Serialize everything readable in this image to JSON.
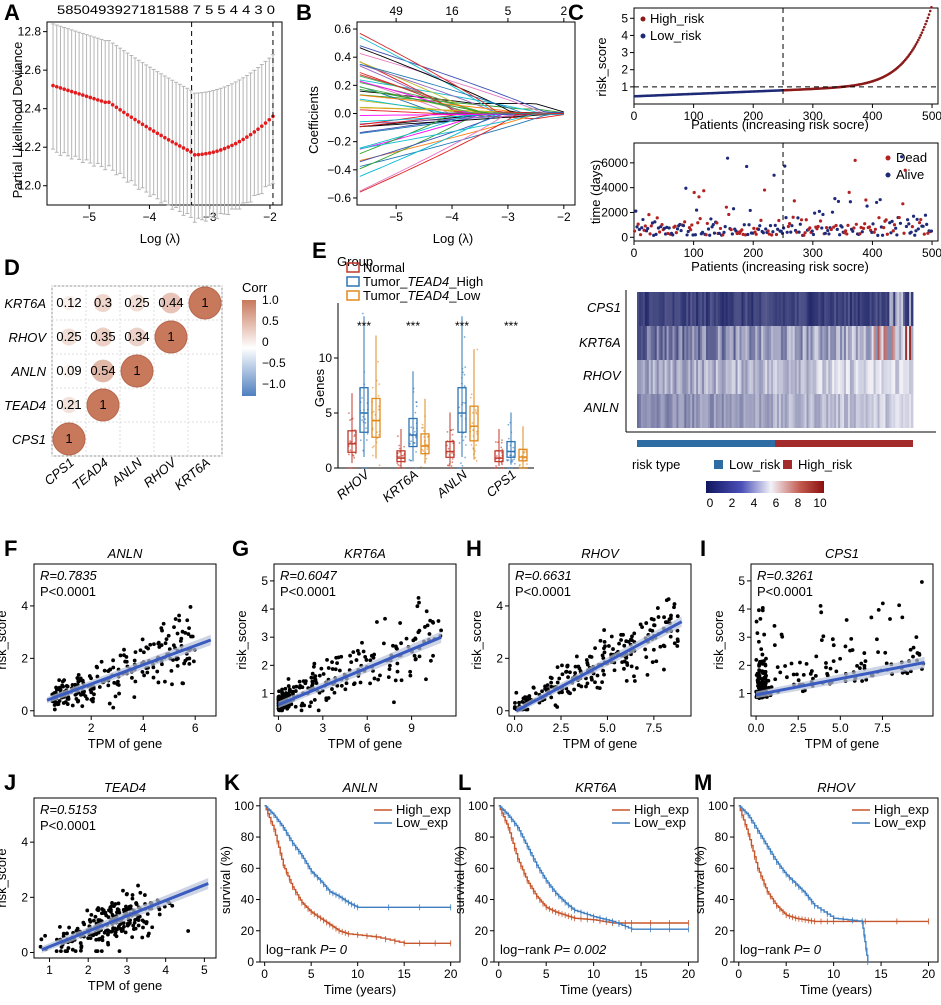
{
  "figure": {
    "panel_labels": [
      "A",
      "B",
      "C",
      "D",
      "E",
      "F",
      "G",
      "H",
      "I",
      "J",
      "K",
      "L",
      "M"
    ]
  },
  "chart_data": [
    {
      "id": "A",
      "type": "line",
      "title": "",
      "xlabel": "Log (λ)",
      "ylabel": "Partial Likelihood Deviance",
      "xlim": [
        -5.7,
        -1.8
      ],
      "ylim": [
        11.9,
        12.85
      ],
      "xticks": [
        -5,
        -4,
        -3,
        -2
      ],
      "yticks": [
        12.0,
        12.2,
        12.4,
        12.6,
        12.8
      ],
      "xticklabels": [
        "−5",
        "−4",
        "−3",
        "−2"
      ],
      "yticklabels": [
        "12.0",
        "12.2",
        "12.4",
        "12.6",
        "12.8"
      ],
      "top_axis_labels": "5850493927181588 7 5 5 4 4 3 0",
      "vlines": [
        -3.3,
        -1.95
      ]
    },
    {
      "id": "B",
      "type": "line",
      "xlabel": "Log (λ)",
      "ylabel": "Coefficients",
      "xlim": [
        -5.7,
        -1.8
      ],
      "ylim": [
        -0.65,
        0.65
      ],
      "xticks": [
        -5,
        -4,
        -3,
        -2
      ],
      "yticks": [
        -0.6,
        -0.4,
        -0.2,
        0.0,
        0.2,
        0.4,
        0.6
      ],
      "xticklabels": [
        "−5",
        "−4",
        "−3",
        "−2"
      ],
      "yticklabels": [
        "−0.6",
        "−0.4",
        "−0.2",
        "0.0",
        "0.2",
        "0.4",
        "0.6"
      ],
      "top_ticks": [
        -5,
        -4,
        -3,
        -2
      ],
      "top_axis_labels": [
        "49",
        "16",
        "5",
        "2"
      ]
    },
    {
      "id": "C1",
      "type": "scatter",
      "xlabel": "Patients (increasing risk socre)",
      "ylabel": "risk_score",
      "xlim": [
        0,
        510
      ],
      "ylim": [
        0,
        5.6
      ],
      "xticks": [
        0,
        100,
        200,
        300,
        400,
        500
      ],
      "yticks": [
        1,
        2,
        3,
        4,
        5
      ],
      "xticklabels": [
        "0",
        "100",
        "200",
        "300",
        "400",
        "500"
      ],
      "yticklabels": [
        "1",
        "2",
        "3",
        "4",
        "5"
      ],
      "cutoff_x": 250,
      "cutoff_y": 1,
      "legend": [
        "High_risk",
        "Low_risk"
      ]
    },
    {
      "id": "C2",
      "type": "scatter",
      "xlabel": "Patients (increasing risk socre)",
      "ylabel": "time (days)",
      "xlim": [
        0,
        510
      ],
      "ylim": [
        -300,
        7600
      ],
      "xticks": [
        0,
        100,
        200,
        300,
        400,
        500
      ],
      "yticks": [
        0,
        2000,
        4000,
        6000
      ],
      "xticklabels": [
        "0",
        "100",
        "200",
        "300",
        "400",
        "500"
      ],
      "yticklabels": [
        "0",
        "2000",
        "4000",
        "6000"
      ],
      "cutoff_x": 250,
      "legend": [
        "Dead",
        "Alive"
      ]
    },
    {
      "id": "C3",
      "type": "heatmap",
      "rows": [
        "CPS1",
        "KRT6A",
        "RHOV",
        "ANLN"
      ],
      "legend_title": "risk type",
      "legend": [
        "Low_risk",
        "High_risk"
      ],
      "colorbar_ticks": [
        "0",
        "2",
        "4",
        "6",
        "8",
        "10"
      ]
    },
    {
      "id": "D",
      "type": "heatmap",
      "labels": [
        "CPS1",
        "TEAD4",
        "ANLN",
        "RHOV",
        "KRT6A"
      ],
      "values": [
        [
          1,
          null,
          null,
          null,
          null
        ],
        [
          0.21,
          1,
          null,
          null,
          null
        ],
        [
          0.09,
          0.54,
          1,
          null,
          null
        ],
        [
          0.25,
          0.35,
          0.34,
          1,
          null
        ],
        [
          0.12,
          0.3,
          0.25,
          0.44,
          1
        ]
      ],
      "colorbar_title": "Corr",
      "colorbar_ticks": [
        "1.0",
        "0.5",
        "0",
        "−0.5",
        "−1.0"
      ]
    },
    {
      "id": "E",
      "type": "bar",
      "title": "Group",
      "ylabel": "Genes",
      "categories": [
        "RHOV",
        "KRT6A",
        "ANLN",
        "CPS1"
      ],
      "series": [
        {
          "name": "Normal",
          "median": [
            2.2,
            0.9,
            1.5,
            0.9
          ]
        },
        {
          "name": "Tumor_TEAD4_High",
          "median": [
            5.0,
            3.0,
            5.0,
            1.5
          ]
        },
        {
          "name": "Tumor_TEAD4_Low",
          "median": [
            4.3,
            2.0,
            3.8,
            1.0
          ]
        }
      ],
      "legend_parts": [
        [
          "Normal",
          "",
          ""
        ],
        [
          "Tumor_",
          "TEAD4",
          "_High"
        ],
        [
          "Tumor_",
          "TEAD4",
          "_Low"
        ]
      ],
      "ylim": [
        0,
        15
      ],
      "yticks": [
        0,
        5,
        10
      ],
      "yticklabels": [
        "0",
        "5",
        "10"
      ],
      "significance": [
        "***",
        "***",
        "***",
        "***"
      ]
    },
    {
      "id": "F",
      "type": "scatter",
      "title": "ANLN",
      "xlabel": "TPM of gene",
      "ylabel": "risk_score",
      "R": "R=0.7835",
      "P": "P<0.0001",
      "xlim": [
        -0.2,
        6.8
      ],
      "ylim": [
        -0.2,
        5.6
      ],
      "xticks": [
        2,
        4,
        6
      ],
      "yticks": [
        0,
        2,
        4
      ],
      "xticklabels": [
        "2",
        "4",
        "6"
      ],
      "yticklabels": [
        "0",
        "2",
        "4"
      ],
      "fit": [
        [
          0.3,
          0.4
        ],
        [
          6.6,
          2.7
        ]
      ]
    },
    {
      "id": "G",
      "type": "scatter",
      "title": "KRT6A",
      "xlabel": "TPM of gene",
      "ylabel": "risk_score",
      "R": "R=0.6047",
      "P": "P<0.0001",
      "xlim": [
        -0.3,
        12
      ],
      "ylim": [
        0.2,
        5.6
      ],
      "xticks": [
        0,
        3,
        6,
        9
      ],
      "yticks": [
        1,
        2,
        3,
        4,
        5
      ],
      "xticklabels": [
        "0",
        "3",
        "6",
        "9"
      ],
      "yticklabels": [
        "1",
        "2",
        "3",
        "4",
        "5"
      ],
      "fit": [
        [
          0,
          0.6
        ],
        [
          11,
          3.0
        ]
      ]
    },
    {
      "id": "H",
      "type": "scatter",
      "title": "RHOV",
      "xlabel": "TPM of gene",
      "ylabel": "risk_score",
      "R": "R=0.6631",
      "P": "P<0.0001",
      "xlim": [
        -0.3,
        9.5
      ],
      "ylim": [
        -0.2,
        5.6
      ],
      "xticks": [
        0,
        2.5,
        5,
        7.5
      ],
      "yticks": [
        0,
        2,
        4
      ],
      "xticklabels": [
        "0.0",
        "2.5",
        "5.0",
        "7.5"
      ],
      "yticklabels": [
        "0",
        "2",
        "4"
      ],
      "fit": [
        [
          0.1,
          0.0
        ],
        [
          9.0,
          3.4
        ]
      ]
    },
    {
      "id": "I",
      "type": "scatter",
      "title": "CPS1",
      "xlabel": "TPM of gene",
      "ylabel": "risk_score",
      "R": "R=0.3261",
      "P": "P<0.0001",
      "xlim": [
        -0.3,
        10.5
      ],
      "ylim": [
        0.2,
        5.6
      ],
      "xticks": [
        0,
        2.5,
        5,
        7.5
      ],
      "yticks": [
        1,
        2,
        3,
        4,
        5
      ],
      "xticklabels": [
        "0.0",
        "2.5",
        "5.0",
        "7.5"
      ],
      "yticklabels": [
        "1",
        "2",
        "3",
        "4",
        "5"
      ],
      "fit": [
        [
          0,
          0.95
        ],
        [
          10,
          2.1
        ]
      ]
    },
    {
      "id": "J",
      "type": "scatter",
      "title": "TEAD4",
      "xlabel": "TPM of gene",
      "ylabel": "risk_score",
      "R": "R=0.5153",
      "P": "P<0.0001",
      "xlim": [
        0.6,
        5.3
      ],
      "ylim": [
        -0.2,
        5.6
      ],
      "xticks": [
        1,
        2,
        3,
        4,
        5
      ],
      "yticks": [
        0,
        2,
        4
      ],
      "xticklabels": [
        "1",
        "2",
        "3",
        "4",
        "5"
      ],
      "yticklabels": [
        "0",
        "2",
        "4"
      ],
      "fit": [
        [
          0.8,
          0.1
        ],
        [
          5.1,
          2.5
        ]
      ]
    },
    {
      "id": "K",
      "type": "line",
      "title": "ANLN",
      "xlabel": "Time (years)",
      "ylabel": "survival (%)",
      "logrank_prefix": "log−rank",
      "logrank_value": "P= 0",
      "xlim": [
        -0.5,
        21
      ],
      "ylim": [
        0,
        105
      ],
      "xticks": [
        0,
        5,
        10,
        15,
        20
      ],
      "yticks": [
        0,
        20,
        40,
        60,
        80,
        100
      ],
      "xticklabels": [
        "0",
        "5",
        "10",
        "15",
        "20"
      ],
      "yticklabels": [
        "0",
        "20",
        "40",
        "60",
        "80",
        "100"
      ],
      "series": [
        {
          "name": "High_exp",
          "points": [
            [
              0,
              100
            ],
            [
              1,
              85
            ],
            [
              2,
              62
            ],
            [
              3,
              48
            ],
            [
              4,
              38
            ],
            [
              5,
              32
            ],
            [
              6,
              28
            ],
            [
              7,
              24
            ],
            [
              8,
              20
            ],
            [
              9,
              18
            ],
            [
              12,
              16
            ],
            [
              15,
              12
            ],
            [
              20,
              12
            ]
          ]
        },
        {
          "name": "Low_exp",
          "points": [
            [
              0,
              100
            ],
            [
              1,
              94
            ],
            [
              2,
              86
            ],
            [
              3,
              76
            ],
            [
              4,
              68
            ],
            [
              5,
              58
            ],
            [
              6,
              52
            ],
            [
              7,
              45
            ],
            [
              8,
              42
            ],
            [
              9,
              38
            ],
            [
              10,
              35
            ],
            [
              20,
              35
            ]
          ]
        }
      ]
    },
    {
      "id": "L",
      "type": "line",
      "title": "KRT6A",
      "xlabel": "Time (years)",
      "ylabel": "survival (%)",
      "logrank_prefix": "log−rank",
      "logrank_value": "P= 0.002",
      "xlim": [
        -0.5,
        21
      ],
      "ylim": [
        0,
        105
      ],
      "xticks": [
        0,
        5,
        10,
        15,
        20
      ],
      "yticks": [
        0,
        20,
        40,
        60,
        80,
        100
      ],
      "xticklabels": [
        "0",
        "5",
        "10",
        "15",
        "20"
      ],
      "yticklabels": [
        "0",
        "20",
        "40",
        "60",
        "80",
        "100"
      ],
      "series": [
        {
          "name": "High_exp",
          "points": [
            [
              0,
              100
            ],
            [
              1,
              86
            ],
            [
              2,
              66
            ],
            [
              3,
              52
            ],
            [
              4,
              42
            ],
            [
              5,
              35
            ],
            [
              6,
              32
            ],
            [
              7,
              30
            ],
            [
              8,
              28
            ],
            [
              10,
              27
            ],
            [
              12,
              25
            ],
            [
              14,
              25
            ],
            [
              20,
              25
            ]
          ]
        },
        {
          "name": "Low_exp",
          "points": [
            [
              0,
              100
            ],
            [
              1,
              94
            ],
            [
              2,
              86
            ],
            [
              3,
              74
            ],
            [
              4,
              62
            ],
            [
              5,
              52
            ],
            [
              6,
              44
            ],
            [
              7,
              38
            ],
            [
              8,
              33
            ],
            [
              10,
              29
            ],
            [
              12,
              26
            ],
            [
              14,
              21
            ],
            [
              20,
              21
            ]
          ]
        }
      ]
    },
    {
      "id": "M",
      "type": "line",
      "title": "RHOV",
      "xlabel": "Time (years)",
      "ylabel": "survival (%)",
      "logrank_prefix": "log−rank",
      "logrank_value": "P= 0",
      "xlim": [
        -0.5,
        21
      ],
      "ylim": [
        0,
        105
      ],
      "xticks": [
        0,
        5,
        10,
        15,
        20
      ],
      "yticks": [
        0,
        20,
        40,
        60,
        80,
        100
      ],
      "xticklabels": [
        "0",
        "5",
        "10",
        "15",
        "20"
      ],
      "yticklabels": [
        "0",
        "20",
        "40",
        "60",
        "80",
        "100"
      ],
      "series": [
        {
          "name": "High_exp",
          "points": [
            [
              0,
              100
            ],
            [
              1,
              82
            ],
            [
              2,
              60
            ],
            [
              3,
              45
            ],
            [
              4,
              36
            ],
            [
              5,
              30
            ],
            [
              6,
              28
            ],
            [
              7,
              27
            ],
            [
              8,
              26
            ],
            [
              10,
              26
            ],
            [
              20,
              26
            ]
          ]
        },
        {
          "name": "Low_exp",
          "points": [
            [
              0,
              100
            ],
            [
              1,
              94
            ],
            [
              2,
              84
            ],
            [
              3,
              74
            ],
            [
              4,
              64
            ],
            [
              5,
              56
            ],
            [
              6,
              50
            ],
            [
              7,
              44
            ],
            [
              8,
              36
            ],
            [
              10,
              28
            ],
            [
              13,
              26
            ],
            [
              13.6,
              0
            ]
          ]
        }
      ]
    }
  ],
  "colors": {
    "high": "#c8562c",
    "low": "#3f7fc1",
    "dark_red": "#8b1a1a",
    "navy": "#1e2a78",
    "fit_line": "#3a5bbf",
    "box_normal": "#c0392b",
    "box_high": "#2e74b5",
    "box_low": "#e08a1e",
    "corr_pos": "#c8795c",
    "corr_neg": "#4f7fbf"
  }
}
